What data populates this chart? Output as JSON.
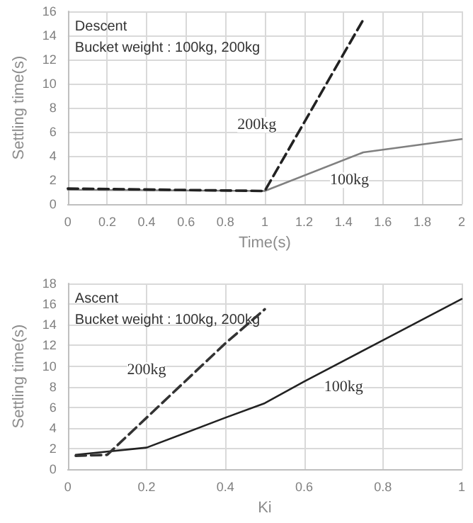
{
  "chart_data": [
    {
      "type": "line",
      "xlabel": "Time(s)",
      "ylabel": "Settling time(s)",
      "xlim": [
        0,
        2
      ],
      "xticks": [
        0,
        0.2,
        0.4,
        0.6,
        0.8,
        1,
        1.2,
        1.4,
        1.6,
        1.8,
        2
      ],
      "ylim": [
        0,
        16
      ],
      "yticks": [
        0,
        2,
        4,
        6,
        8,
        10,
        12,
        14,
        16
      ],
      "grid": true,
      "marker": "none",
      "series": [
        {
          "color": "#808080",
          "line_style": "solid",
          "x": [
            0,
            1,
            1.5,
            2
          ],
          "values": [
            1.2,
            1.1,
            4.3,
            5.4
          ]
        },
        {
          "color": "#222222",
          "line_style": "dashed",
          "x": [
            0,
            1,
            1.5
          ],
          "values": [
            1.3,
            1.1,
            15.3
          ]
        }
      ],
      "annotations": [
        "Descent",
        "Bucket weight : 100kg, 200kg",
        {
          "text": "200kg",
          "x": 0.96,
          "y": 6.6
        },
        {
          "text": "100kg",
          "x": 1.43,
          "y": 2
        }
      ]
    },
    {
      "type": "line",
      "xlabel": "Ki",
      "ylabel": "Settling time(s)",
      "xlim": [
        0,
        1
      ],
      "xticks": [
        0,
        0.2,
        0.4,
        0.6,
        0.8,
        1
      ],
      "ylim": [
        0,
        18
      ],
      "yticks": [
        0,
        2,
        4,
        6,
        8,
        10,
        12,
        14,
        16,
        18
      ],
      "grid": true,
      "marker": "none",
      "series": [
        {
          "color": "#222222",
          "line_style": "solid",
          "x": [
            0.02,
            0.2,
            0.4,
            0.5,
            0.6,
            0.8,
            1
          ],
          "values": [
            1.4,
            2.1,
            5,
            6.4,
            8.5,
            12.5,
            16.5
          ]
        },
        {
          "color": "#333333",
          "line_style": "dashed",
          "x": [
            0.02,
            0.1,
            0.2,
            0.4,
            0.5
          ],
          "values": [
            1.3,
            1.4,
            5,
            12.2,
            15.5
          ]
        }
      ],
      "annotations": [
        "Ascent",
        "Bucket weight : 100kg, 200kg",
        {
          "text": "200kg",
          "x": 0.2,
          "y": 9.6
        },
        {
          "text": "100kg",
          "x": 0.7,
          "y": 8
        }
      ]
    }
  ]
}
